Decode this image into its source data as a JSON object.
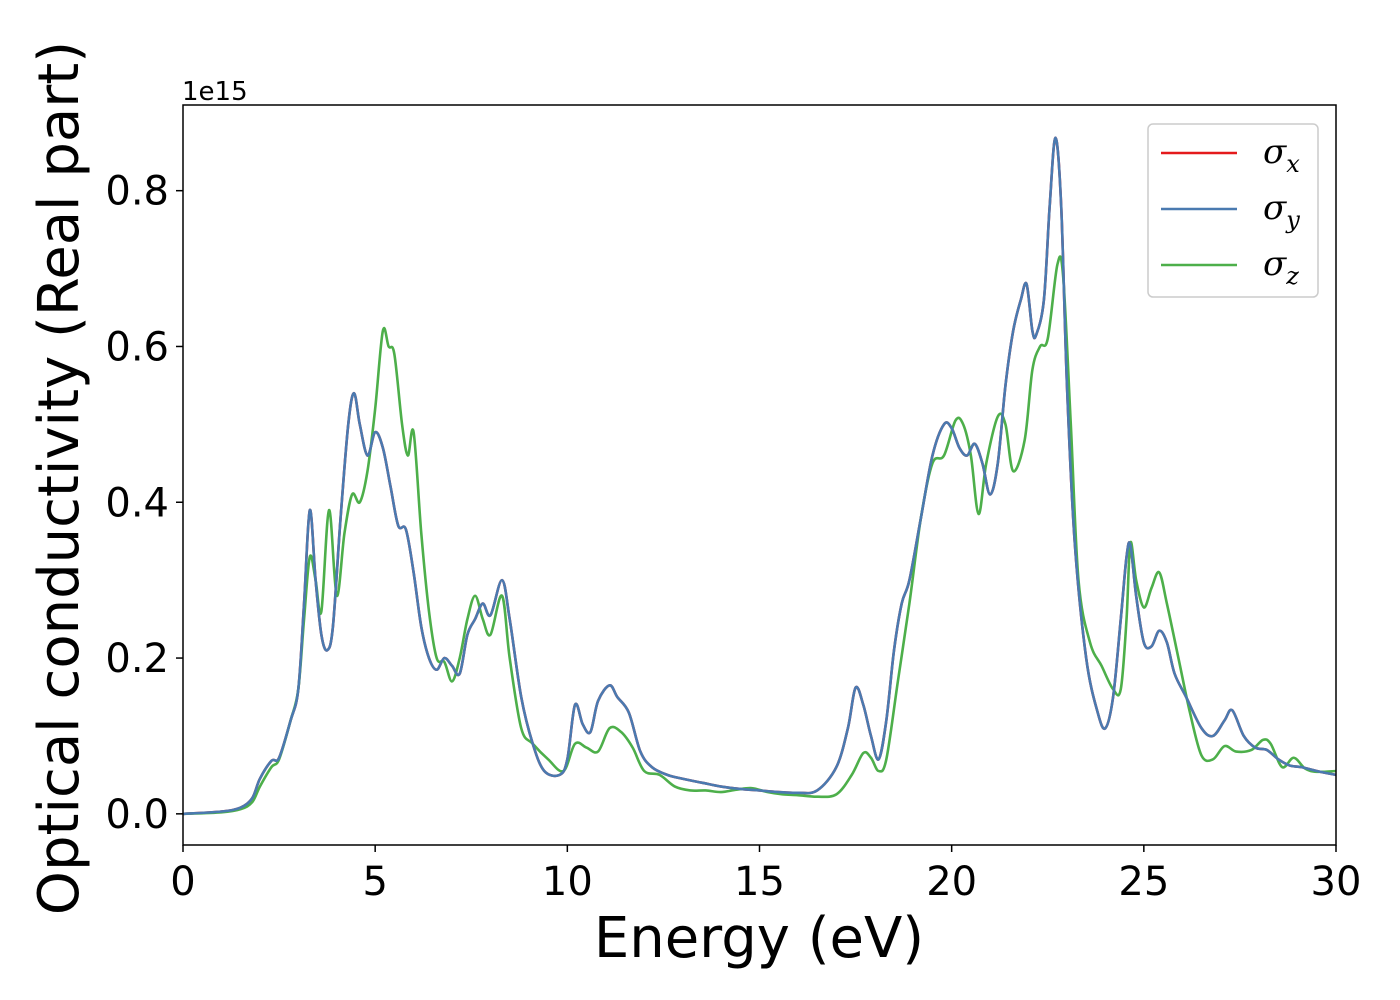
{
  "chart_data": {
    "type": "line",
    "xlabel": "Energy (eV)",
    "ylabel": "Optical conductivity (Real part)",
    "y_offset_label": "1e15",
    "xlim": [
      0,
      30
    ],
    "ylim": [
      -0.04,
      0.91
    ],
    "x_ticks": [
      0,
      5,
      10,
      15,
      20,
      25,
      30
    ],
    "x_tick_labels": [
      "0",
      "5",
      "10",
      "15",
      "20",
      "25",
      "30"
    ],
    "y_ticks": [
      0.0,
      0.2,
      0.4,
      0.6,
      0.8
    ],
    "y_tick_labels": [
      "0.0",
      "0.2",
      "0.4",
      "0.6",
      "0.8"
    ],
    "grid": false,
    "legend_position": "top-right",
    "series": [
      {
        "name": "σx",
        "symbol": "σ",
        "subscript": "x",
        "color": "#e41a1c",
        "x": [
          0,
          1,
          1.5,
          1.8,
          2.0,
          2.3,
          2.5,
          2.8,
          3.0,
          3.15,
          3.3,
          3.45,
          3.6,
          3.75,
          3.9,
          4.1,
          4.3,
          4.45,
          4.6,
          4.8,
          5.0,
          5.2,
          5.4,
          5.6,
          5.8,
          6.0,
          6.2,
          6.4,
          6.6,
          6.8,
          7.0,
          7.2,
          7.4,
          7.6,
          7.8,
          8.0,
          8.3,
          8.5,
          8.8,
          9.1,
          9.4,
          9.8,
          10.0,
          10.2,
          10.4,
          10.6,
          10.8,
          11.1,
          11.3,
          11.6,
          11.9,
          12.2,
          12.6,
          13.0,
          13.5,
          14.0,
          14.5,
          15.0,
          15.5,
          16.0,
          16.5,
          17.0,
          17.3,
          17.5,
          17.7,
          17.9,
          18.1,
          18.3,
          18.5,
          18.7,
          18.9,
          19.2,
          19.5,
          19.8,
          20.0,
          20.2,
          20.4,
          20.6,
          20.8,
          21.0,
          21.2,
          21.4,
          21.6,
          21.8,
          21.95,
          22.1,
          22.2,
          22.4,
          22.55,
          22.7,
          22.85,
          23.0,
          23.2,
          23.5,
          23.8,
          24.0,
          24.2,
          24.4,
          24.55,
          24.65,
          24.8,
          25.0,
          25.2,
          25.4,
          25.6,
          25.8,
          26.1,
          26.5,
          26.8,
          27.1,
          27.3,
          27.6,
          27.9,
          28.2,
          28.5,
          28.8,
          29.1,
          29.5,
          30
        ],
        "y": [
          0,
          0.003,
          0.008,
          0.02,
          0.045,
          0.068,
          0.072,
          0.12,
          0.16,
          0.27,
          0.39,
          0.3,
          0.23,
          0.21,
          0.24,
          0.38,
          0.5,
          0.54,
          0.5,
          0.46,
          0.49,
          0.47,
          0.42,
          0.37,
          0.365,
          0.31,
          0.24,
          0.2,
          0.185,
          0.2,
          0.19,
          0.18,
          0.23,
          0.25,
          0.27,
          0.255,
          0.3,
          0.25,
          0.15,
          0.09,
          0.055,
          0.05,
          0.07,
          0.14,
          0.115,
          0.105,
          0.145,
          0.165,
          0.15,
          0.13,
          0.08,
          0.06,
          0.05,
          0.045,
          0.04,
          0.035,
          0.032,
          0.03,
          0.028,
          0.027,
          0.03,
          0.06,
          0.11,
          0.162,
          0.14,
          0.1,
          0.07,
          0.12,
          0.21,
          0.27,
          0.3,
          0.38,
          0.46,
          0.5,
          0.495,
          0.47,
          0.46,
          0.475,
          0.45,
          0.41,
          0.45,
          0.55,
          0.62,
          0.66,
          0.68,
          0.62,
          0.615,
          0.66,
          0.78,
          0.868,
          0.78,
          0.55,
          0.35,
          0.2,
          0.13,
          0.11,
          0.15,
          0.25,
          0.33,
          0.345,
          0.28,
          0.22,
          0.215,
          0.235,
          0.22,
          0.18,
          0.15,
          0.11,
          0.1,
          0.12,
          0.133,
          0.1,
          0.085,
          0.082,
          0.07,
          0.062,
          0.06,
          0.055,
          0.05
        ]
      },
      {
        "name": "σy",
        "symbol": "σ",
        "subscript": "y",
        "color": "#4a7ab0",
        "x": [
          0,
          1,
          1.5,
          1.8,
          2.0,
          2.3,
          2.5,
          2.8,
          3.0,
          3.15,
          3.3,
          3.45,
          3.6,
          3.75,
          3.9,
          4.1,
          4.3,
          4.45,
          4.6,
          4.8,
          5.0,
          5.2,
          5.4,
          5.6,
          5.8,
          6.0,
          6.2,
          6.4,
          6.6,
          6.8,
          7.0,
          7.2,
          7.4,
          7.6,
          7.8,
          8.0,
          8.3,
          8.5,
          8.8,
          9.1,
          9.4,
          9.8,
          10.0,
          10.2,
          10.4,
          10.6,
          10.8,
          11.1,
          11.3,
          11.6,
          11.9,
          12.2,
          12.6,
          13.0,
          13.5,
          14.0,
          14.5,
          15.0,
          15.5,
          16.0,
          16.5,
          17.0,
          17.3,
          17.5,
          17.7,
          17.9,
          18.1,
          18.3,
          18.5,
          18.7,
          18.9,
          19.2,
          19.5,
          19.8,
          20.0,
          20.2,
          20.4,
          20.6,
          20.8,
          21.0,
          21.2,
          21.4,
          21.6,
          21.8,
          21.95,
          22.1,
          22.2,
          22.4,
          22.55,
          22.7,
          22.85,
          23.0,
          23.2,
          23.5,
          23.8,
          24.0,
          24.2,
          24.4,
          24.55,
          24.65,
          24.8,
          25.0,
          25.2,
          25.4,
          25.6,
          25.8,
          26.1,
          26.5,
          26.8,
          27.1,
          27.3,
          27.6,
          27.9,
          28.2,
          28.5,
          28.8,
          29.1,
          29.5,
          30
        ],
        "y": [
          0,
          0.003,
          0.008,
          0.02,
          0.045,
          0.068,
          0.072,
          0.12,
          0.16,
          0.27,
          0.39,
          0.3,
          0.23,
          0.21,
          0.24,
          0.38,
          0.5,
          0.54,
          0.5,
          0.46,
          0.49,
          0.47,
          0.42,
          0.37,
          0.365,
          0.31,
          0.24,
          0.2,
          0.185,
          0.2,
          0.19,
          0.18,
          0.23,
          0.25,
          0.27,
          0.255,
          0.3,
          0.25,
          0.15,
          0.09,
          0.055,
          0.05,
          0.07,
          0.14,
          0.115,
          0.105,
          0.145,
          0.165,
          0.15,
          0.13,
          0.08,
          0.06,
          0.05,
          0.045,
          0.04,
          0.035,
          0.032,
          0.03,
          0.028,
          0.027,
          0.03,
          0.06,
          0.11,
          0.162,
          0.14,
          0.1,
          0.07,
          0.12,
          0.21,
          0.27,
          0.3,
          0.38,
          0.46,
          0.5,
          0.495,
          0.47,
          0.46,
          0.475,
          0.45,
          0.41,
          0.45,
          0.55,
          0.62,
          0.66,
          0.68,
          0.62,
          0.615,
          0.66,
          0.78,
          0.868,
          0.78,
          0.55,
          0.35,
          0.2,
          0.13,
          0.11,
          0.15,
          0.25,
          0.33,
          0.345,
          0.28,
          0.22,
          0.215,
          0.235,
          0.22,
          0.18,
          0.15,
          0.11,
          0.1,
          0.12,
          0.133,
          0.1,
          0.085,
          0.082,
          0.07,
          0.062,
          0.06,
          0.055,
          0.05
        ]
      },
      {
        "name": "σz",
        "symbol": "σ",
        "subscript": "z",
        "color": "#4daf4a",
        "x": [
          0,
          1,
          1.5,
          1.8,
          2.0,
          2.3,
          2.5,
          2.8,
          3.0,
          3.15,
          3.3,
          3.45,
          3.6,
          3.8,
          4.0,
          4.2,
          4.4,
          4.6,
          4.8,
          5.0,
          5.2,
          5.35,
          5.5,
          5.7,
          5.85,
          6.0,
          6.2,
          6.4,
          6.6,
          6.8,
          7.0,
          7.2,
          7.4,
          7.6,
          7.8,
          8.0,
          8.3,
          8.5,
          8.8,
          9.1,
          9.5,
          9.9,
          10.2,
          10.5,
          10.8,
          11.1,
          11.4,
          11.7,
          12.0,
          12.4,
          12.8,
          13.2,
          13.6,
          14.0,
          14.4,
          14.8,
          15.2,
          15.6,
          16.0,
          16.5,
          17.0,
          17.4,
          17.7,
          17.9,
          18.1,
          18.3,
          18.6,
          18.9,
          19.2,
          19.5,
          19.8,
          20.1,
          20.3,
          20.5,
          20.7,
          20.9,
          21.2,
          21.4,
          21.6,
          21.9,
          22.1,
          22.3,
          22.5,
          22.75,
          22.9,
          23.1,
          23.3,
          23.6,
          23.9,
          24.2,
          24.4,
          24.55,
          24.65,
          24.8,
          25.0,
          25.2,
          25.4,
          25.6,
          25.9,
          26.2,
          26.5,
          26.8,
          27.1,
          27.4,
          27.8,
          28.1,
          28.3,
          28.6,
          28.9,
          29.2,
          29.5,
          30
        ],
        "y": [
          0,
          0.002,
          0.006,
          0.015,
          0.035,
          0.06,
          0.07,
          0.12,
          0.16,
          0.25,
          0.33,
          0.3,
          0.26,
          0.39,
          0.28,
          0.36,
          0.41,
          0.4,
          0.44,
          0.52,
          0.62,
          0.6,
          0.59,
          0.5,
          0.46,
          0.49,
          0.36,
          0.26,
          0.2,
          0.195,
          0.17,
          0.2,
          0.25,
          0.28,
          0.25,
          0.23,
          0.28,
          0.2,
          0.11,
          0.09,
          0.07,
          0.055,
          0.09,
          0.085,
          0.08,
          0.11,
          0.105,
          0.085,
          0.055,
          0.05,
          0.035,
          0.03,
          0.03,
          0.028,
          0.031,
          0.033,
          0.028,
          0.025,
          0.024,
          0.022,
          0.025,
          0.05,
          0.078,
          0.072,
          0.055,
          0.07,
          0.17,
          0.27,
          0.38,
          0.45,
          0.46,
          0.505,
          0.5,
          0.46,
          0.385,
          0.45,
          0.51,
          0.5,
          0.44,
          0.48,
          0.57,
          0.6,
          0.61,
          0.705,
          0.69,
          0.5,
          0.3,
          0.22,
          0.19,
          0.16,
          0.16,
          0.25,
          0.348,
          0.3,
          0.265,
          0.29,
          0.31,
          0.27,
          0.2,
          0.13,
          0.075,
          0.07,
          0.087,
          0.08,
          0.082,
          0.095,
          0.09,
          0.06,
          0.072,
          0.058,
          0.054,
          0.055
        ]
      }
    ]
  }
}
